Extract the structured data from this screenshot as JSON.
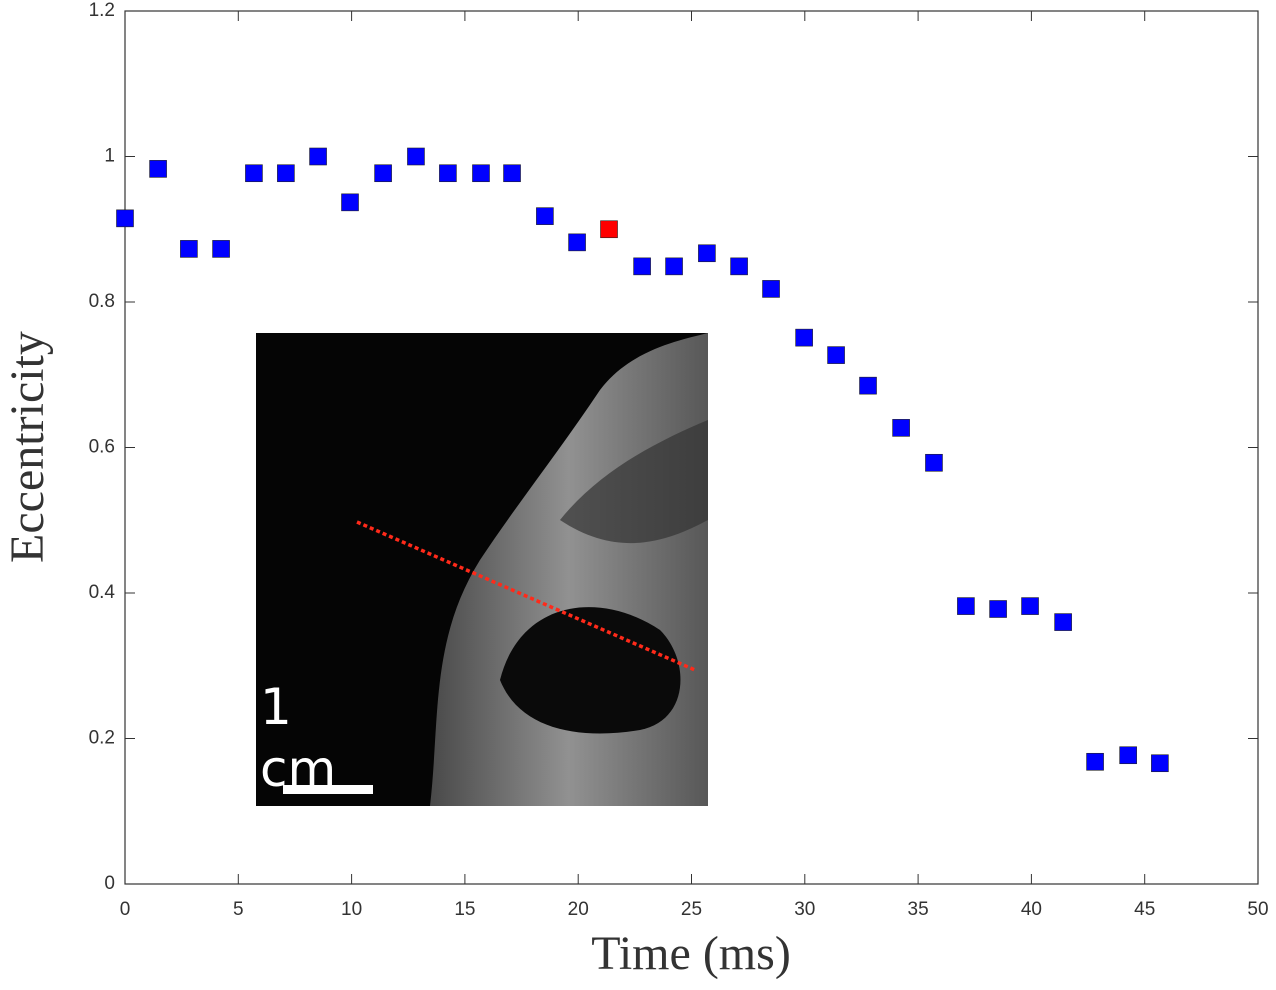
{
  "chart_data": {
    "type": "scatter",
    "xlabel": "Time (ms)",
    "ylabel": "Eccentricity",
    "scale_label": "1 cm",
    "xlim": [
      0,
      50
    ],
    "ylim": [
      0,
      1.2
    ],
    "xticks": [
      0,
      5,
      10,
      15,
      20,
      25,
      30,
      35,
      40,
      45,
      50
    ],
    "yticks": [
      0,
      0.2,
      0.4,
      0.6,
      0.8,
      1,
      1.2
    ],
    "series": [
      {
        "color": "#0000ff",
        "x": [
          0,
          1.46,
          2.82,
          4.24,
          5.69,
          7.1,
          8.52,
          9.93,
          11.39,
          12.84,
          14.25,
          15.71,
          17.08,
          18.53,
          19.95,
          22.82,
          24.23,
          25.68,
          27.1,
          28.51,
          29.97,
          31.38,
          32.79,
          34.25,
          35.7,
          37.11,
          38.53,
          39.94,
          41.4,
          42.81,
          44.27,
          45.67
        ],
        "values": [
          0.915,
          0.983,
          0.873,
          0.873,
          0.977,
          0.977,
          1.0,
          0.937,
          0.977,
          1.0,
          0.977,
          0.977,
          0.977,
          0.918,
          0.882,
          0.849,
          0.849,
          0.867,
          0.849,
          0.818,
          0.751,
          0.727,
          0.685,
          0.627,
          0.579,
          0.382,
          0.378,
          0.382,
          0.36,
          0.168,
          0.177,
          0.166
        ]
      },
      {
        "color": "#ff0000",
        "x": [
          21.36
        ],
        "values": [
          0.9
        ]
      }
    ]
  }
}
